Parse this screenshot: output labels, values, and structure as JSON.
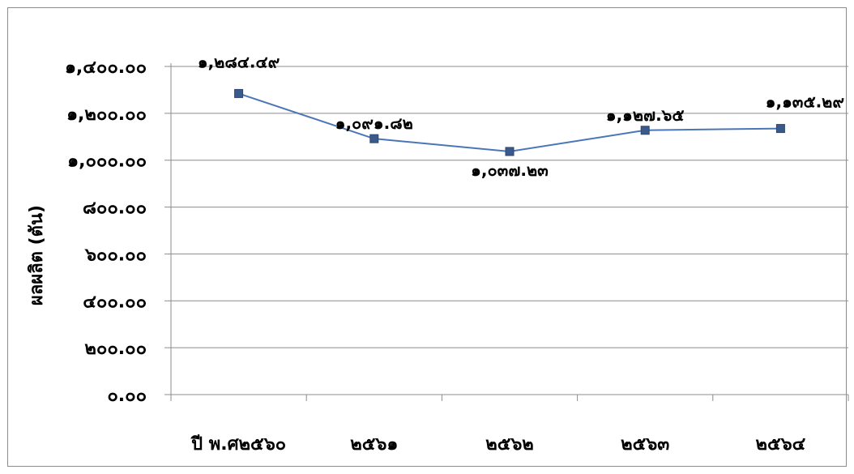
{
  "chart_data": {
    "type": "line",
    "title": "",
    "xlabel": "",
    "ylabel": "ผลผลิต (ตัน)",
    "categories": [
      "ปี พ.ศ๒๕๖๐",
      "๒๕๖๑",
      "๒๕๖๒",
      "๒๕๖๓",
      "๒๕๖๔"
    ],
    "series": [
      {
        "values": [
          1284.49,
          1091.82,
          1037.23,
          1127.65,
          1135.29
        ],
        "labels": [
          "๑,๒๘๔.๔๙",
          "๑,๐๙๑.๘๒",
          "๑,๐๓๗.๒๓",
          "๑,๑๒๗.๖๕",
          "๑,๑๓๕.๒๙"
        ],
        "color": "#4a76b8",
        "marker_color": "#3a5a8c"
      }
    ],
    "ylim": [
      0,
      1400
    ],
    "ytick_values": [
      0,
      200,
      400,
      600,
      800,
      1000,
      1200,
      1400
    ],
    "ytick_labels": [
      "๐.๐๐",
      "๒๐๐.๐๐",
      "๔๐๐.๐๐",
      "๖๐๐.๐๐",
      "๘๐๐.๐๐",
      "๑,๐๐๐.๐๐",
      "๑,๒๐๐.๐๐",
      "๑,๔๐๐.๐๐"
    ],
    "grid": true,
    "legend": "none"
  }
}
